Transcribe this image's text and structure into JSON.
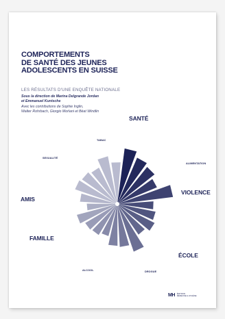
{
  "cover": {
    "title_lines": [
      "COMPORTEMENTS",
      "DE SANTÉ DES JEUNES",
      "ADOLESCENTS EN SUISSE"
    ],
    "subtitle": "LES RÉSULTATS D'UNE ENQUÊTE NATIONALE",
    "editors_lines": [
      "Sous la direction de Marina Delgrande Jordan",
      "et Emmanuel Kuntsche"
    ],
    "contributors_lines": [
      "Avec les contributions de Sophie Inglin,",
      "Walter Rohrbach, Giorgio Morlani et Béat Windlin"
    ],
    "topic_labels": {
      "sante": "SANTÉ",
      "alimentation": "ALIMENTATION",
      "violence": "VIOLENCE",
      "ecole": "ÉCOLE",
      "drogue": "DROGUE",
      "alcool": "ALCOOL",
      "famille": "FAMILLE",
      "amis": "AMIS",
      "sexualite": "SEXUALITÉ",
      "tabac": "TABAC"
    },
    "publisher": {
      "mark": "MH",
      "name_lines": [
        "ÉDITIONS",
        "MÉDECINE & HYGIÈNE"
      ]
    },
    "colors": {
      "title": "#1c2257",
      "wedge_dark": "#1c2257",
      "wedge_light": "#b9bbcf"
    },
    "wedge_levels": [
      0.95,
      0.85,
      0.8,
      0.72,
      0.95,
      0.6,
      0.65,
      0.7,
      0.62,
      0.85,
      0.72,
      0.7,
      0.55,
      0.6,
      0.62,
      0.7,
      0.5,
      0.62,
      0.75,
      0.72,
      0.68,
      0.82,
      0.7
    ]
  }
}
